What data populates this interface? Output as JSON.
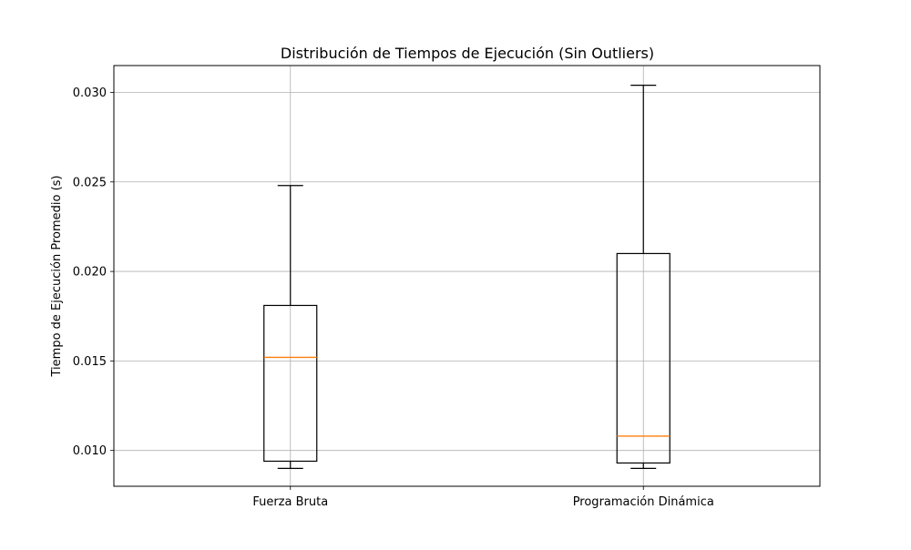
{
  "chart_data": {
    "type": "box",
    "title": "Distribución de Tiempos de Ejecución (Sin Outliers)",
    "xlabel": "",
    "ylabel": "Tiempo de Ejecución Promedio (s)",
    "ylim": [
      0.008,
      0.0315
    ],
    "yticks": [
      0.01,
      0.015,
      0.02,
      0.025,
      0.03
    ],
    "ytick_labels": [
      "0.010",
      "0.015",
      "0.020",
      "0.025",
      "0.030"
    ],
    "grid": true,
    "categories": [
      "Fuerza Bruta",
      "Programación Dinámica"
    ],
    "boxes": [
      {
        "category": "Fuerza Bruta",
        "whisker_low": 0.009,
        "q1": 0.0094,
        "median": 0.0152,
        "q3": 0.0181,
        "whisker_high": 0.0248
      },
      {
        "category": "Programación Dinámica",
        "whisker_low": 0.009,
        "q1": 0.0093,
        "median": 0.0108,
        "q3": 0.021,
        "whisker_high": 0.0304
      }
    ],
    "colors": {
      "box": "#000000",
      "median": "#ff7f0e",
      "grid": "#b0b0b0"
    }
  }
}
